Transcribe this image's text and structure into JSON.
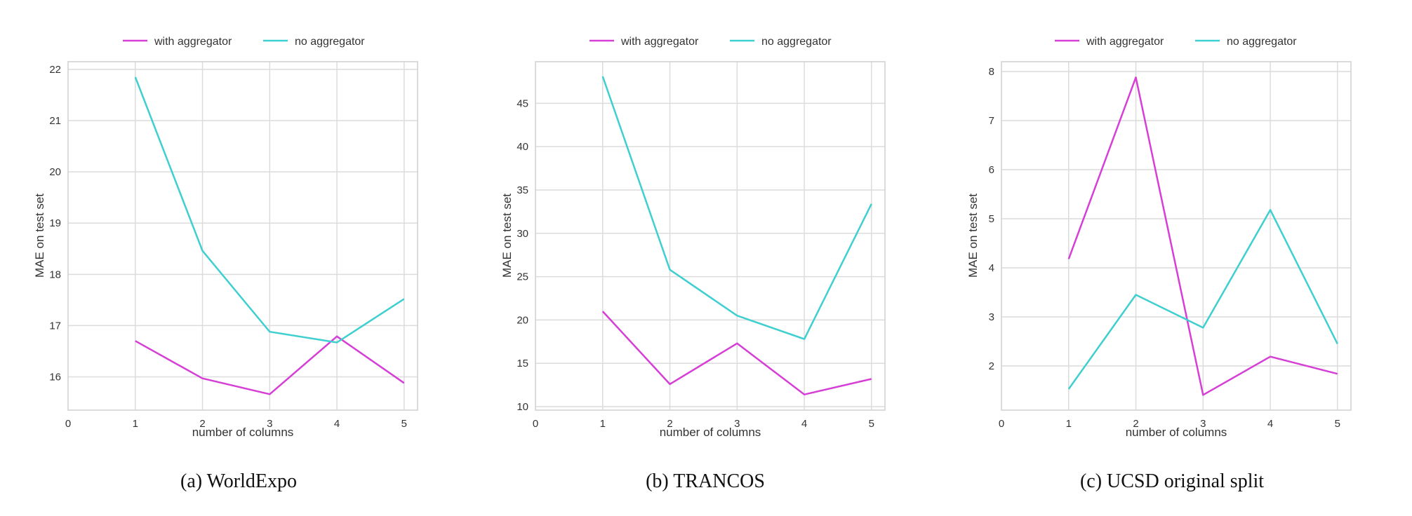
{
  "chart_data": [
    {
      "type": "line",
      "caption": "(a) WorldExpo",
      "title": "",
      "xlabel": "number of columns",
      "ylabel": "MAE on test set",
      "xlim": [
        0,
        5.2
      ],
      "ylim": [
        15.35,
        22.15
      ],
      "xticks": [
        0,
        1,
        2,
        3,
        4,
        5
      ],
      "yticks": [
        16,
        17,
        18,
        19,
        20,
        21,
        22
      ],
      "grid": true,
      "legend_position": "top-center",
      "x": [
        1,
        2,
        3,
        4,
        5
      ],
      "series": [
        {
          "name": "with aggregator",
          "color": "#d63fd6",
          "values": [
            16.7,
            15.97,
            15.66,
            16.79,
            15.88
          ]
        },
        {
          "name": "no aggregator",
          "color": "#3fcfd0",
          "values": [
            21.85,
            18.46,
            16.88,
            16.67,
            17.52
          ]
        }
      ]
    },
    {
      "type": "line",
      "caption": "(b) TRANCOS",
      "title": "",
      "xlabel": "number of columns",
      "ylabel": "MAE on test set",
      "xlim": [
        0,
        5.2
      ],
      "ylim": [
        9.6,
        49.8
      ],
      "xticks": [
        0,
        1,
        2,
        3,
        4,
        5
      ],
      "yticks": [
        10,
        15,
        20,
        25,
        30,
        35,
        40,
        45
      ],
      "grid": true,
      "legend_position": "top-center",
      "x": [
        1,
        2,
        3,
        4,
        5
      ],
      "series": [
        {
          "name": "with aggregator",
          "color": "#d63fd6",
          "values": [
            21.0,
            12.6,
            17.3,
            11.4,
            13.2
          ]
        },
        {
          "name": "no aggregator",
          "color": "#3fcfd0",
          "values": [
            48.1,
            25.8,
            20.5,
            17.8,
            33.4
          ]
        }
      ]
    },
    {
      "type": "line",
      "caption": "(c) UCSD original split",
      "title": "",
      "xlabel": "number of columns",
      "ylabel": "MAE on test set",
      "xlim": [
        0,
        5.2
      ],
      "ylim": [
        1.1,
        8.2
      ],
      "xticks": [
        0,
        1,
        2,
        3,
        4,
        5
      ],
      "yticks": [
        2,
        3,
        4,
        5,
        6,
        7,
        8
      ],
      "grid": true,
      "legend_position": "top-center",
      "x": [
        1,
        2,
        3,
        4,
        5
      ],
      "series": [
        {
          "name": "with aggregator",
          "color": "#d63fd6",
          "values": [
            4.18,
            7.88,
            1.41,
            2.19,
            1.84
          ]
        },
        {
          "name": "no aggregator",
          "color": "#3fcfd0",
          "values": [
            1.53,
            3.45,
            2.78,
            5.18,
            2.45
          ]
        }
      ]
    }
  ]
}
